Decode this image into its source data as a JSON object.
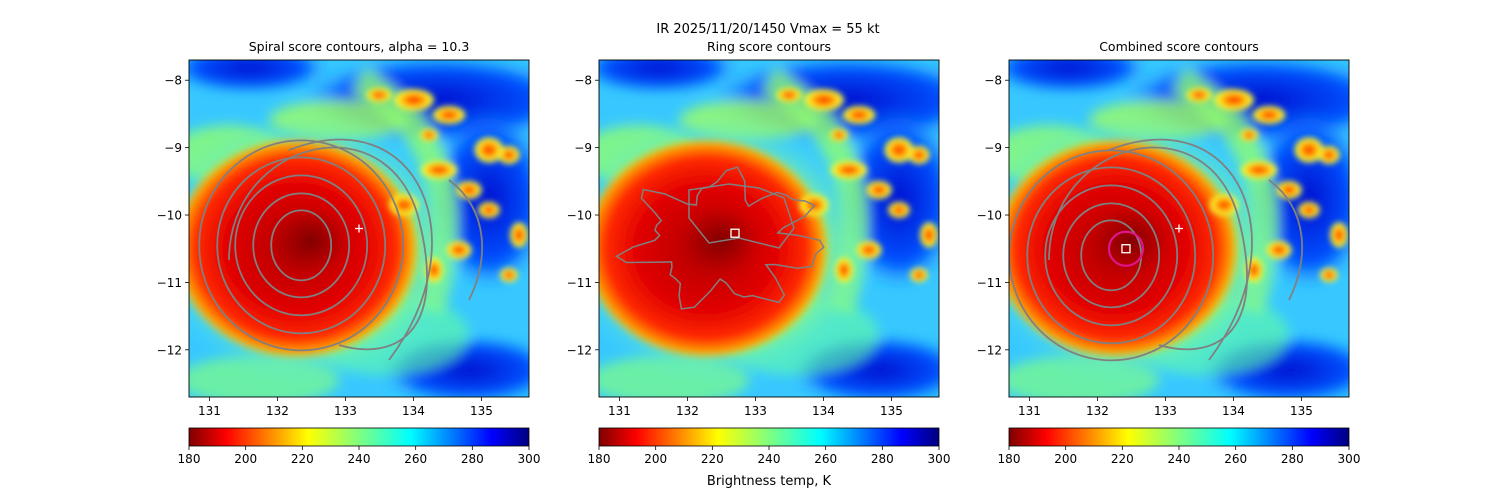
{
  "figure": {
    "suptitle_line1": "IR  2025/11/20/1450    Vmax = 55 kt",
    "colorbar_label": "Brightness temp, K"
  },
  "chart_data": [
    {
      "type": "heatmap",
      "title": "Spiral score contours, alpha = 10.3",
      "xlim": [
        130.7,
        135.7
      ],
      "ylim": [
        -12.7,
        -7.7
      ],
      "xticks": [
        131,
        132,
        133,
        134,
        135
      ],
      "xtick_labels": [
        "131",
        "132",
        "133",
        "134",
        "135"
      ],
      "yticks": [
        -8,
        -9,
        -10,
        -11,
        -12
      ],
      "ytick_labels": [
        "−8",
        "−9",
        "−10",
        "−11",
        "−12"
      ],
      "colormap": "jet",
      "clim": [
        180,
        300
      ],
      "colorbar_ticks": [
        "180",
        "200",
        "220",
        "240",
        "260",
        "280",
        "300"
      ],
      "storm_center": [
        132.35,
        -10.45
      ],
      "best_track_marker": {
        "lon": 133.2,
        "lat": -10.2
      },
      "contour_color": "#808080"
    },
    {
      "type": "heatmap",
      "title": "Ring score contours",
      "xlim": [
        130.7,
        135.7
      ],
      "ylim": [
        -12.7,
        -7.7
      ],
      "xticks": [
        131,
        132,
        133,
        134,
        135
      ],
      "xtick_labels": [
        "131",
        "132",
        "133",
        "134",
        "135"
      ],
      "yticks": [
        -8,
        -9,
        -10,
        -11,
        -12
      ],
      "ytick_labels": [
        "−8",
        "−9",
        "−10",
        "−11",
        "−12"
      ],
      "colormap": "jet",
      "clim": [
        180,
        300
      ],
      "colorbar_ticks": [
        "180",
        "200",
        "220",
        "240",
        "260",
        "280",
        "300"
      ],
      "storm_center": [
        132.35,
        -10.45
      ],
      "estimated_center": {
        "lon": 132.7,
        "lat": -10.27
      },
      "contour_color": "#808080"
    },
    {
      "type": "heatmap",
      "title": "Combined score contours",
      "xlim": [
        130.7,
        135.7
      ],
      "ylim": [
        -12.7,
        -7.7
      ],
      "xticks": [
        131,
        132,
        133,
        134,
        135
      ],
      "xtick_labels": [
        "131",
        "132",
        "133",
        "134",
        "135"
      ],
      "yticks": [
        -8,
        -9,
        -10,
        -11,
        -12
      ],
      "ytick_labels": [
        "−8",
        "−9",
        "−10",
        "−11",
        "−12"
      ],
      "colormap": "jet",
      "clim": [
        180,
        300
      ],
      "colorbar_ticks": [
        "180",
        "200",
        "220",
        "240",
        "260",
        "280",
        "300"
      ],
      "storm_center": [
        132.35,
        -10.45
      ],
      "best_track_marker": {
        "lon": 133.2,
        "lat": -10.2
      },
      "estimated_center": {
        "lon": 132.42,
        "lat": -10.5
      },
      "highlight_ring_color": "#e0148c",
      "contour_color": "#808080"
    }
  ]
}
